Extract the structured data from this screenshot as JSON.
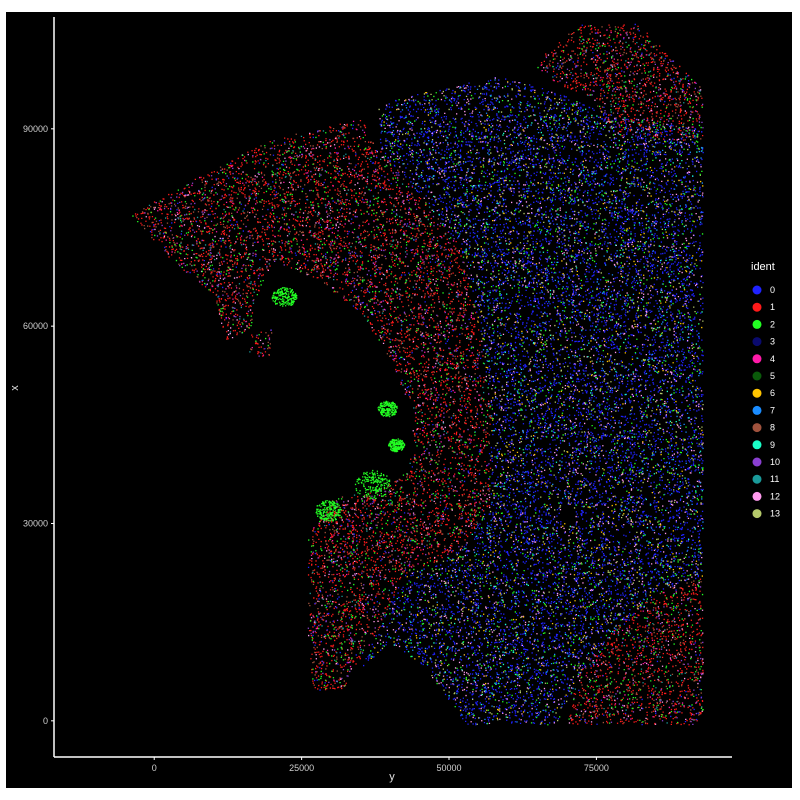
{
  "chart_data": {
    "type": "scatter",
    "title": "",
    "xlabel": "y",
    "ylabel": "x",
    "xlim": [
      -17000,
      98000
    ],
    "ylim": [
      -5500,
      107000
    ],
    "x_ticks": [
      0,
      25000,
      50000,
      75000
    ],
    "y_ticks": [
      0,
      30000,
      60000,
      90000
    ],
    "x_tick_labels": [
      "0",
      "25000",
      "50000",
      "75000"
    ],
    "y_tick_labels": [
      "0",
      "30000",
      "60000",
      "90000"
    ],
    "background": "#000000",
    "grid": false,
    "legend": {
      "title": "ident",
      "placement": "right",
      "entries": [
        {
          "label": "0",
          "color": "#1f22ff"
        },
        {
          "label": "1",
          "color": "#ff1a1a"
        },
        {
          "label": "2",
          "color": "#22ff22"
        },
        {
          "label": "3",
          "color": "#0a0a6e"
        },
        {
          "label": "4",
          "color": "#ff1aa8"
        },
        {
          "label": "5",
          "color": "#0a5a0a"
        },
        {
          "label": "6",
          "color": "#ffc400"
        },
        {
          "label": "7",
          "color": "#1a8cff"
        },
        {
          "label": "8",
          "color": "#a0523d"
        },
        {
          "label": "9",
          "color": "#1affc8"
        },
        {
          "label": "10",
          "color": "#8a3fd1"
        },
        {
          "label": "11",
          "color": "#1a9a9a"
        },
        {
          "label": "12",
          "color": "#ff9aee"
        },
        {
          "label": "13",
          "color": "#b5c96a"
        }
      ]
    },
    "regions": [
      {
        "cluster_mix": "red",
        "polygon": [
          [
            -4000,
            77000
          ],
          [
            8000,
            83000
          ],
          [
            20000,
            88500
          ],
          [
            35000,
            91500
          ],
          [
            38000,
            87000
          ],
          [
            45000,
            80000
          ],
          [
            52000,
            72000
          ],
          [
            55000,
            60000
          ],
          [
            57000,
            48000
          ],
          [
            57000,
            33000
          ],
          [
            52000,
            26000
          ],
          [
            42000,
            22000
          ],
          [
            38000,
            14000
          ],
          [
            32000,
            5000
          ],
          [
            27000,
            4500
          ],
          [
            26000,
            12000
          ],
          [
            26000,
            28000
          ],
          [
            30000,
            34000
          ],
          [
            38000,
            35000
          ],
          [
            43000,
            38000
          ],
          [
            44000,
            46000
          ],
          [
            40000,
            55000
          ],
          [
            35000,
            62000
          ],
          [
            28000,
            67000
          ],
          [
            20000,
            70000
          ],
          [
            17000,
            64000
          ],
          [
            16000,
            55500
          ],
          [
            19500,
            55500
          ],
          [
            20000,
            60000
          ],
          [
            12000,
            58000
          ],
          [
            10000,
            65000
          ],
          [
            3000,
            70000
          ],
          [
            -4000,
            77000
          ]
        ]
      },
      {
        "cluster_mix": "blue",
        "polygon": [
          [
            38000,
            94000
          ],
          [
            48000,
            96000
          ],
          [
            58000,
            98000
          ],
          [
            67000,
            96000
          ],
          [
            78000,
            92000
          ],
          [
            93000,
            90000
          ],
          [
            93000,
            22000
          ],
          [
            86000,
            20000
          ],
          [
            80000,
            15000
          ],
          [
            74000,
            10000
          ],
          [
            68000,
            -500
          ],
          [
            53000,
            -500
          ],
          [
            50000,
            3000
          ],
          [
            46000,
            8000
          ],
          [
            40000,
            12000
          ],
          [
            35000,
            8000
          ],
          [
            38000,
            14000
          ],
          [
            42000,
            22000
          ],
          [
            52000,
            26000
          ],
          [
            57000,
            33000
          ],
          [
            57000,
            48000
          ],
          [
            55000,
            60000
          ],
          [
            52000,
            72000
          ],
          [
            45000,
            80000
          ],
          [
            38000,
            87000
          ],
          [
            38000,
            94000
          ]
        ]
      },
      {
        "cluster_mix": "red",
        "polygon": [
          [
            64000,
            100000
          ],
          [
            72000,
            106000
          ],
          [
            82000,
            106000
          ],
          [
            93000,
            96000
          ],
          [
            93000,
            88000
          ],
          [
            86000,
            88500
          ],
          [
            78000,
            89000
          ],
          [
            74000,
            95000
          ],
          [
            68000,
            97000
          ],
          [
            64000,
            100000
          ]
        ]
      },
      {
        "cluster_mix": "red",
        "polygon": [
          [
            72000,
            8000
          ],
          [
            80000,
            16000
          ],
          [
            86000,
            20000
          ],
          [
            93000,
            22000
          ],
          [
            93000,
            -500
          ],
          [
            70000,
            -500
          ],
          [
            72000,
            8000
          ]
        ]
      }
    ],
    "dense_patches": [
      {
        "cluster": "2",
        "center": [
          39500,
          47500
        ],
        "radius": 1200
      },
      {
        "cluster": "2",
        "center": [
          37000,
          36000
        ],
        "radius": 2200
      },
      {
        "cluster": "2",
        "center": [
          29500,
          32000
        ],
        "radius": 1600
      },
      {
        "cluster": "2",
        "center": [
          22000,
          64500
        ],
        "radius": 1500
      },
      {
        "cluster": "2",
        "center": [
          41000,
          42000
        ],
        "radius": 1000
      }
    ]
  }
}
